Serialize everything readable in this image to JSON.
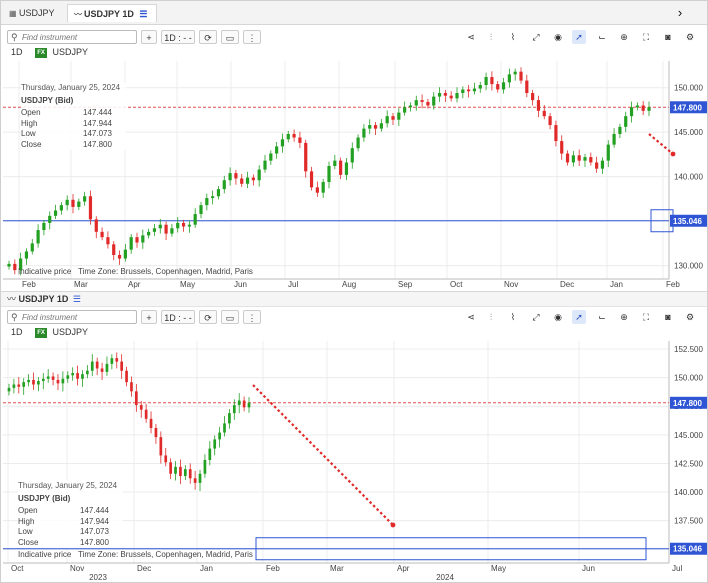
{
  "tabs": {
    "tab1": "USDJPY",
    "tab2": "USDJPY 1D"
  },
  "panel2_title": "USDJPY 1D",
  "toolbar": {
    "search_placeholder": "Find instrument",
    "add": "+",
    "interval": "1D : - -"
  },
  "header": {
    "interval": "1D",
    "fx_badge": "FX",
    "symbol": "USDJPY"
  },
  "legend": {
    "date": "Thursday, January 25, 2024",
    "symbol": "USDJPY (Bid)",
    "open_label": "Open",
    "open": "147.444",
    "high_label": "High",
    "high": "147.944",
    "low_label": "Low",
    "low": "147.073",
    "close_label": "Close",
    "close": "147.800"
  },
  "footer": {
    "indicative": "Indicative price",
    "timezone": "Time Zone: Brussels, Copenhagen, Madrid, Paris"
  },
  "price_tags": {
    "current": "147.800",
    "level": "135.046"
  },
  "colors": {
    "up": "#22a022",
    "down": "#e02a2a",
    "level_line": "#2f55d4",
    "price_tag": "#2f55d4"
  },
  "icons": [
    "search-icon",
    "plus-icon",
    "refresh-icon",
    "candle-type-icon",
    "more-icon",
    "share-icon",
    "indicators-icon",
    "studies-icon",
    "draw-line-icon",
    "eye-icon",
    "cursor-icon",
    "chart-type-icon",
    "zoom-icon",
    "fullscreen-icon",
    "camera-icon",
    "settings-icon",
    "chevron-right-icon"
  ],
  "chart_data": [
    {
      "type": "candlestick",
      "name": "top",
      "instrument": "USDJPY",
      "interval": "1D",
      "x_ticks": [
        "Feb",
        "Mar",
        "Apr",
        "May",
        "Jun",
        "Jul",
        "Aug",
        "Sep",
        "Oct",
        "Nov",
        "Dec",
        "Jan",
        "Feb"
      ],
      "y_ticks": [
        "150.000",
        "145.000",
        "140.000",
        "135.000",
        "130.000"
      ],
      "ylim": [
        128.5,
        153.0
      ],
      "closes": [
        130.2,
        129.5,
        130.8,
        131.6,
        132.5,
        134.0,
        134.8,
        135.6,
        136.2,
        136.8,
        137.4,
        136.6,
        137.2,
        137.8,
        135.2,
        133.8,
        133.2,
        132.4,
        131.2,
        130.8,
        131.8,
        133.2,
        132.6,
        133.4,
        133.8,
        134.2,
        134.6,
        133.6,
        134.2,
        134.8,
        134.4,
        134.6,
        135.8,
        136.8,
        137.6,
        137.8,
        138.6,
        139.6,
        140.4,
        139.8,
        139.2,
        139.9,
        139.6,
        140.8,
        141.8,
        142.6,
        143.4,
        144.2,
        144.8,
        144.4,
        143.8,
        140.6,
        138.8,
        138.2,
        139.4,
        141.2,
        141.8,
        140.2,
        141.6,
        143.2,
        144.4,
        145.4,
        145.8,
        145.4,
        146.0,
        146.8,
        146.4,
        147.2,
        147.8,
        148.0,
        148.6,
        148.4,
        148.0,
        149.0,
        149.4,
        149.1,
        148.8,
        149.4,
        149.8,
        149.6,
        149.9,
        150.3,
        151.2,
        150.4,
        149.8,
        150.6,
        151.5,
        151.8,
        150.8,
        149.4,
        148.6,
        147.4,
        146.8,
        145.8,
        144.0,
        142.6,
        141.6,
        142.4,
        141.8,
        142.2,
        141.6,
        140.9,
        141.8,
        143.6,
        144.8,
        145.6,
        146.8,
        147.8,
        148.0,
        147.4,
        147.8
      ],
      "last": 147.8,
      "level": 135.046
    },
    {
      "type": "candlestick",
      "name": "bottom",
      "instrument": "USDJPY",
      "interval": "1D",
      "x_ticks": [
        "Oct",
        "Nov",
        "Dec",
        "Jan",
        "Feb",
        "Mar",
        "Apr",
        "May",
        "Jun",
        "Jul"
      ],
      "x_year_labels": [
        "2023",
        "2024"
      ],
      "y_ticks": [
        "152.500",
        "150.000",
        "147.500",
        "145.000",
        "142.500",
        "140.000",
        "137.500",
        "135.000"
      ],
      "ylim": [
        133.8,
        153.2
      ],
      "closes": [
        149.1,
        149.4,
        149.2,
        149.6,
        149.8,
        149.4,
        149.7,
        149.9,
        150.1,
        149.8,
        149.5,
        149.9,
        150.2,
        150.4,
        149.9,
        150.3,
        150.6,
        151.4,
        150.8,
        150.5,
        151.2,
        151.7,
        151.4,
        150.6,
        149.6,
        148.8,
        147.6,
        147.2,
        146.4,
        145.6,
        144.8,
        143.2,
        142.6,
        141.6,
        142.2,
        141.4,
        142.0,
        141.2,
        140.8,
        141.6,
        142.8,
        143.8,
        144.6,
        145.2,
        146.0,
        146.9,
        147.6,
        148.0,
        147.4,
        147.8
      ],
      "last": 147.8,
      "level": 135.046
    }
  ]
}
